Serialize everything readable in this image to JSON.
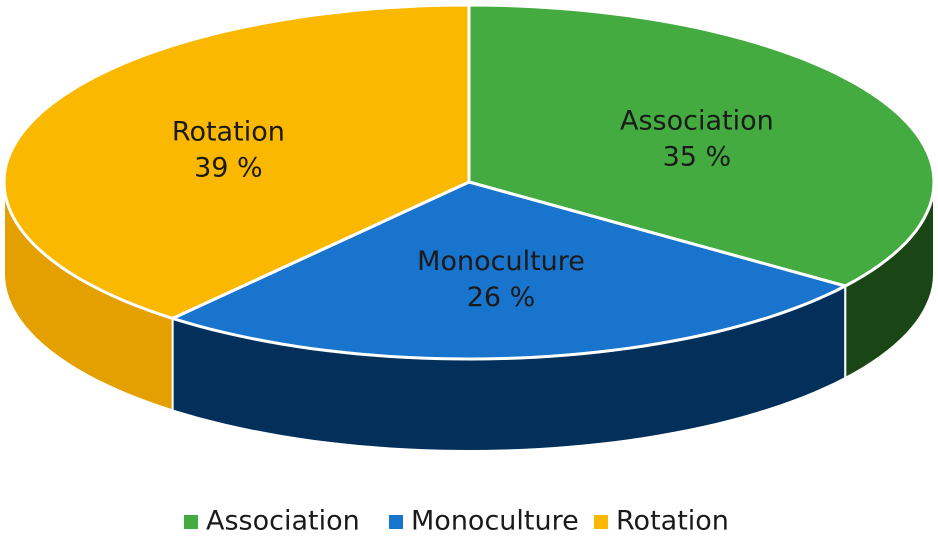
{
  "chart_data": {
    "type": "pie",
    "three_d": true,
    "categories": [
      "Association",
      "Monoculture",
      "Rotation"
    ],
    "values": [
      35,
      26,
      39
    ],
    "value_labels": [
      "35 %",
      "26 %",
      "39 %"
    ],
    "colors": [
      "#43ab3f",
      "#1874cc",
      "#fbb800"
    ],
    "side_colors": [
      "#1a4514",
      "#03305a",
      "#e3a000"
    ],
    "legend": "bottom"
  }
}
